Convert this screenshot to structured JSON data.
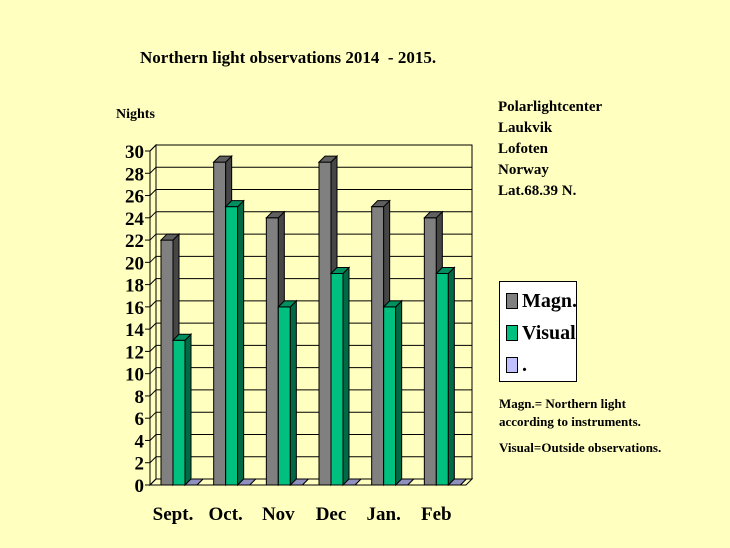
{
  "chart_data": {
    "type": "bar",
    "title": "Northern light observations 2014  - 2015.",
    "ylabel": "Nights",
    "xlabel": "",
    "categories": [
      "Sept.",
      "Oct.",
      "Nov",
      "Dec",
      "Jan.",
      "Feb"
    ],
    "series": [
      {
        "name": "Magn.",
        "values": [
          22,
          29,
          24,
          29,
          25,
          24
        ],
        "color": "#808080"
      },
      {
        "name": "Visual",
        "values": [
          13,
          25,
          16,
          19,
          16,
          19
        ],
        "color": "#00c080"
      },
      {
        "name": ".",
        "values": [
          0,
          0,
          0,
          0,
          0,
          0
        ],
        "color": "#c0c0ff"
      }
    ],
    "yticks": [
      "0",
      "2",
      "4",
      "6",
      "8",
      "10",
      "12",
      "14",
      "16",
      "18",
      "20",
      "22",
      "24",
      "26",
      "28",
      "30"
    ],
    "ylim": [
      0,
      30
    ],
    "grid": true,
    "legend_position": "right"
  },
  "info": {
    "lines": [
      "Polarlightcenter",
      "Laukvik",
      "Lofoten",
      "Norway",
      "Lat.68.39 N."
    ]
  },
  "notes": {
    "line1": "Magn.= Northern light",
    "line2": "according to instruments.",
    "line3": "Visual=Outside observations."
  }
}
